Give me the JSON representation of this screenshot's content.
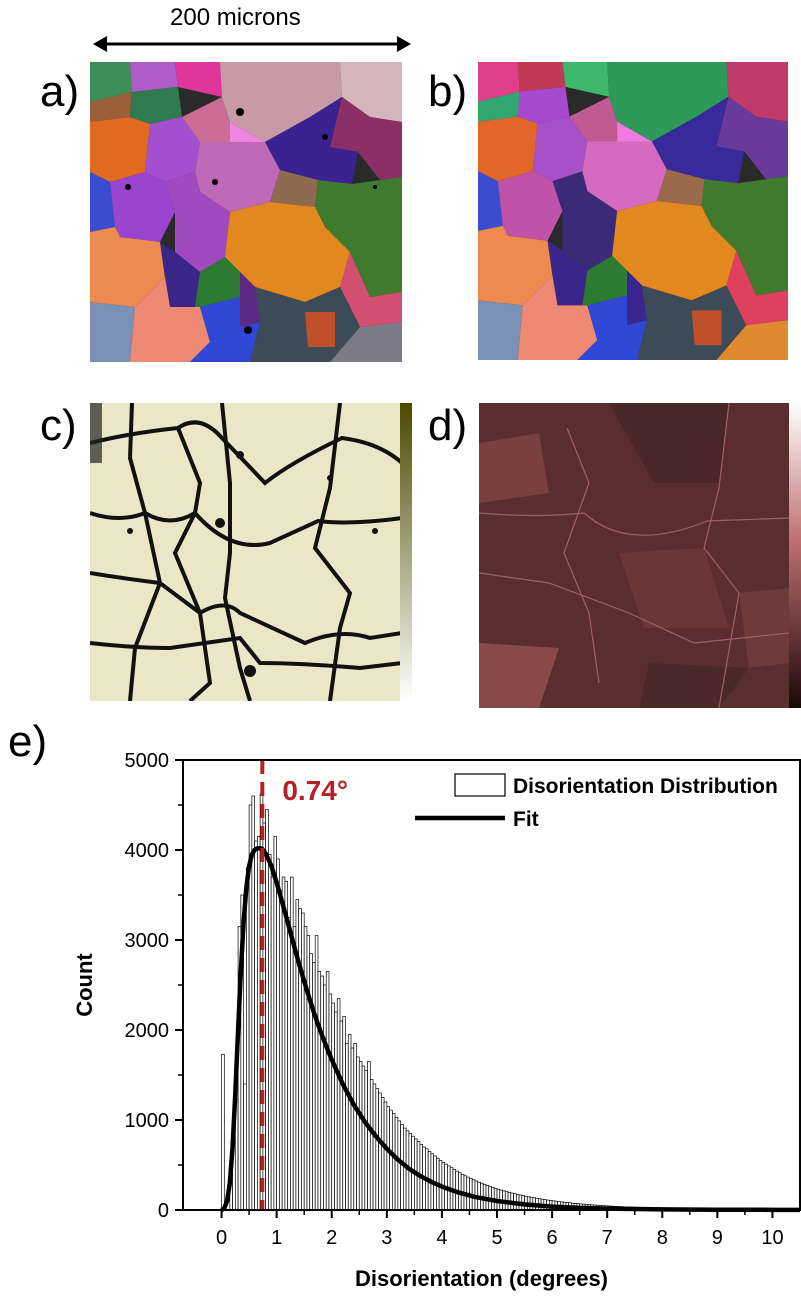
{
  "scale_bar": {
    "label": "200 microns"
  },
  "panels": {
    "a": "a)",
    "b": "b)",
    "c": "c)",
    "d": "d)",
    "e": "e)"
  },
  "colors": {
    "bars": "#ffffff",
    "bar_outline": "#000000",
    "fit_line": "#000000",
    "peak_marker": "#b22222",
    "colorbar_c_top": "#4a4a00",
    "colorbar_c_bottom": "#ffffff",
    "colorbar_d_top": "#ffffff",
    "colorbar_d_bottom": "#1a0808"
  },
  "chart_data": {
    "type": "bar",
    "xlabel": "Disorientation (degrees)",
    "ylabel": "Count",
    "xlim": [
      -0.7,
      10.5
    ],
    "ylim": [
      0,
      5000
    ],
    "xticks": [
      0,
      1,
      2,
      3,
      4,
      5,
      6,
      7,
      8,
      9,
      10
    ],
    "yticks": [
      0,
      1000,
      2000,
      3000,
      4000,
      5000
    ],
    "legend_position": "top-right",
    "series": [
      {
        "name": "Disorientation Distribution",
        "kind": "histogram",
        "bin_width": 0.05,
        "bins_start": 0,
        "values": [
          1730,
          0,
          0,
          350,
          820,
          1230,
          3150,
          3500,
          1400,
          3800,
          4500,
          4600,
          4100,
          4150,
          4620,
          4300,
          4450,
          3950,
          3700,
          4150,
          3900,
          3550,
          3700,
          3650,
          3250,
          3700,
          3150,
          3450,
          3350,
          3300,
          3150,
          3050,
          2850,
          2750,
          3050,
          2650,
          2600,
          2500,
          2650,
          2400,
          2300,
          2200,
          2350,
          2100,
          2150,
          1850,
          1950,
          1800,
          1850,
          1700,
          1650,
          1600,
          1550,
          1650,
          1450,
          1400,
          1350,
          1300,
          1250,
          1200,
          1150,
          1110,
          1070,
          1030,
          990,
          950,
          910,
          880,
          850,
          820,
          790,
          760,
          730,
          700,
          680,
          650,
          625,
          600,
          575,
          550,
          530,
          510,
          490,
          470,
          450,
          432,
          414,
          397,
          380,
          365,
          350,
          336,
          322,
          309,
          297,
          285,
          273,
          262,
          251,
          241,
          231,
          222,
          213,
          204,
          196,
          188,
          181,
          173,
          166,
          160,
          153,
          147,
          141,
          136,
          130,
          125,
          120,
          115,
          110,
          106,
          102,
          98,
          94,
          90,
          86,
          83,
          80,
          76,
          73,
          70,
          68,
          65,
          62,
          60,
          58,
          55,
          53,
          51,
          49,
          47,
          45,
          43,
          41,
          40,
          38,
          37,
          35,
          34,
          32,
          31,
          30,
          29,
          27,
          26,
          25,
          24,
          23,
          22,
          21,
          20,
          20,
          19,
          18,
          17,
          17,
          16,
          15,
          15,
          14,
          13,
          13,
          12,
          12,
          11,
          11,
          10,
          10,
          9,
          9,
          9,
          8,
          8,
          8,
          7,
          7,
          7,
          6,
          6,
          6,
          6,
          5,
          5,
          5,
          5,
          4,
          4,
          4,
          4,
          4,
          3,
          3,
          3,
          3,
          3,
          3
        ]
      },
      {
        "name": "Fit",
        "kind": "line",
        "x": [
          0,
          0.05,
          0.1,
          0.15,
          0.2,
          0.25,
          0.3,
          0.35,
          0.4,
          0.45,
          0.5,
          0.55,
          0.6,
          0.65,
          0.7,
          0.74,
          0.8,
          0.9,
          1.0,
          1.1,
          1.2,
          1.3,
          1.4,
          1.5,
          1.6,
          1.7,
          1.8,
          1.9,
          2.0,
          2.2,
          2.4,
          2.6,
          2.8,
          3.0,
          3.2,
          3.4,
          3.6,
          3.8,
          4.0,
          4.3,
          4.6,
          5.0,
          5.5,
          6.0,
          6.5,
          7.0,
          8.0,
          9.0,
          10.0,
          10.5
        ],
        "y": [
          0,
          20,
          100,
          300,
          700,
          1300,
          2000,
          2650,
          3200,
          3580,
          3820,
          3950,
          4000,
          4020,
          4020,
          4010,
          3960,
          3830,
          3640,
          3420,
          3200,
          2970,
          2750,
          2540,
          2340,
          2150,
          1980,
          1820,
          1670,
          1400,
          1170,
          980,
          820,
          680,
          560,
          460,
          380,
          315,
          260,
          195,
          145,
          100,
          62,
          38,
          24,
          15,
          7,
          3,
          2,
          1
        ]
      }
    ],
    "annotations": [
      {
        "text": "0.74°",
        "x": 0.74
      }
    ]
  }
}
